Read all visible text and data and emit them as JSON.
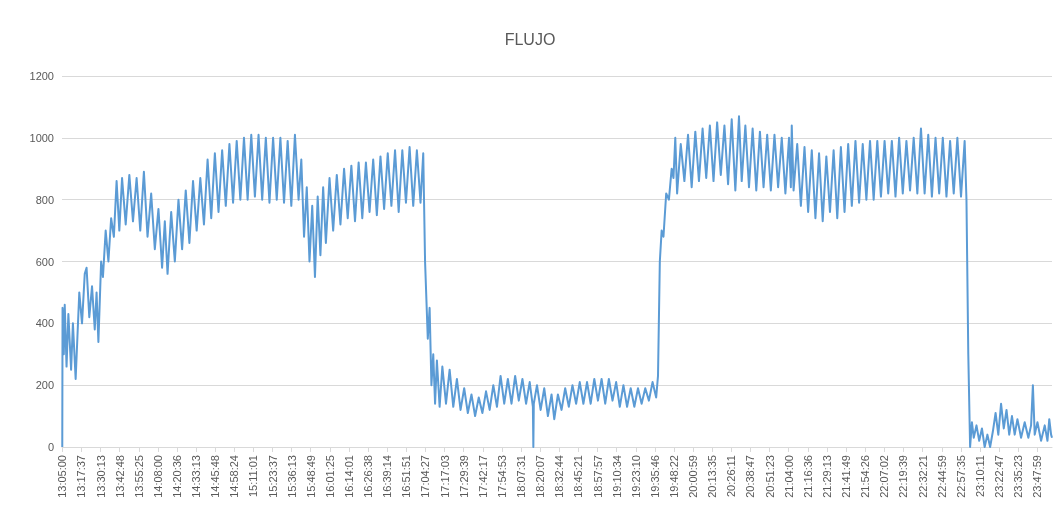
{
  "chart_data": {
    "type": "line",
    "title": "FLUJO",
    "x": [
      13.083,
      13.086,
      13.1,
      13.11,
      13.13,
      13.15,
      13.18,
      13.2,
      13.23,
      13.25,
      13.27,
      13.3,
      13.33,
      13.35,
      13.38,
      13.41,
      13.44,
      13.46,
      13.48,
      13.51,
      13.53,
      13.56,
      13.59,
      13.62,
      13.65,
      13.68,
      13.71,
      13.74,
      13.78,
      13.82,
      13.86,
      13.9,
      13.94,
      13.98,
      14.02,
      14.06,
      14.1,
      14.14,
      14.18,
      14.21,
      14.24,
      14.28,
      14.32,
      14.36,
      14.4,
      14.44,
      14.48,
      14.52,
      14.56,
      14.6,
      14.64,
      14.68,
      14.72,
      14.76,
      14.8,
      14.84,
      14.88,
      14.92,
      14.96,
      15.0,
      15.04,
      15.08,
      15.12,
      15.16,
      15.2,
      15.24,
      15.28,
      15.32,
      15.36,
      15.4,
      15.44,
      15.48,
      15.52,
      15.56,
      15.6,
      15.64,
      15.68,
      15.71,
      15.74,
      15.77,
      15.8,
      15.83,
      15.86,
      15.89,
      15.92,
      15.95,
      15.98,
      16.02,
      16.06,
      16.1,
      16.14,
      16.18,
      16.22,
      16.26,
      16.3,
      16.34,
      16.38,
      16.42,
      16.46,
      16.5,
      16.54,
      16.58,
      16.62,
      16.66,
      16.7,
      16.74,
      16.78,
      16.82,
      16.86,
      16.9,
      16.94,
      16.98,
      17.02,
      17.05,
      17.07,
      17.1,
      17.12,
      17.14,
      17.16,
      17.18,
      17.2,
      17.23,
      17.26,
      17.3,
      17.34,
      17.38,
      17.42,
      17.46,
      17.5,
      17.54,
      17.58,
      17.62,
      17.66,
      17.7,
      17.74,
      17.78,
      17.82,
      17.86,
      17.9,
      17.94,
      17.98,
      18.02,
      18.06,
      18.1,
      18.14,
      18.18,
      18.22,
      18.255,
      18.26,
      18.265,
      18.3,
      18.34,
      18.38,
      18.42,
      18.46,
      18.49,
      18.53,
      18.57,
      18.61,
      18.65,
      18.69,
      18.73,
      18.77,
      18.81,
      18.85,
      18.89,
      18.93,
      18.97,
      19.01,
      19.05,
      19.09,
      19.13,
      19.17,
      19.21,
      19.25,
      19.29,
      19.33,
      19.37,
      19.41,
      19.45,
      19.49,
      19.53,
      19.57,
      19.61,
      19.63,
      19.65,
      19.67,
      19.69,
      19.72,
      19.75,
      19.78,
      19.8,
      19.82,
      19.84,
      19.88,
      19.92,
      19.96,
      20.0,
      20.04,
      20.08,
      20.12,
      20.16,
      20.2,
      20.24,
      20.28,
      20.32,
      20.36,
      20.4,
      20.44,
      20.48,
      20.52,
      20.55,
      20.59,
      20.63,
      20.67,
      20.71,
      20.75,
      20.79,
      20.83,
      20.87,
      20.91,
      20.95,
      20.99,
      21.03,
      21.07,
      21.09,
      21.1,
      21.12,
      21.16,
      21.2,
      21.24,
      21.28,
      21.32,
      21.36,
      21.4,
      21.44,
      21.48,
      21.52,
      21.56,
      21.6,
      21.64,
      21.68,
      21.72,
      21.76,
      21.8,
      21.84,
      21.88,
      21.92,
      21.96,
      22.0,
      22.04,
      22.08,
      22.12,
      22.16,
      22.2,
      22.24,
      22.28,
      22.32,
      22.36,
      22.4,
      22.44,
      22.48,
      22.52,
      22.56,
      22.6,
      22.64,
      22.68,
      22.72,
      22.76,
      22.8,
      22.84,
      22.88,
      22.92,
      22.96,
      23.0,
      23.02,
      23.04,
      23.06,
      23.08,
      23.1,
      23.13,
      23.16,
      23.19,
      23.22,
      23.25,
      23.28,
      23.31,
      23.34,
      23.37,
      23.4,
      23.43,
      23.46,
      23.49,
      23.52,
      23.55,
      23.58,
      23.62,
      23.66,
      23.7,
      23.73,
      23.75,
      23.77,
      23.8,
      23.84,
      23.88,
      23.91,
      23.93,
      23.95,
      23.96
    ],
    "series": [
      {
        "color": "#5b9bd5",
        "values": [
          0,
          450,
          300,
          460,
          260,
          430,
          250,
          400,
          220,
          360,
          500,
          400,
          560,
          580,
          420,
          520,
          380,
          500,
          340,
          600,
          550,
          700,
          600,
          740,
          680,
          860,
          700,
          870,
          720,
          880,
          730,
          870,
          700,
          890,
          680,
          820,
          640,
          770,
          580,
          730,
          560,
          760,
          600,
          800,
          640,
          830,
          660,
          860,
          700,
          870,
          720,
          930,
          740,
          950,
          760,
          960,
          780,
          980,
          790,
          990,
          800,
          1000,
          800,
          1010,
          810,
          1010,
          800,
          1000,
          790,
          1000,
          800,
          1000,
          790,
          990,
          780,
          1010,
          800,
          930,
          680,
          840,
          600,
          780,
          550,
          810,
          620,
          840,
          660,
          870,
          700,
          880,
          720,
          900,
          740,
          910,
          730,
          920,
          740,
          920,
          760,
          930,
          750,
          940,
          770,
          950,
          780,
          960,
          760,
          960,
          790,
          970,
          780,
          960,
          790,
          950,
          600,
          350,
          450,
          200,
          300,
          140,
          280,
          130,
          260,
          140,
          250,
          130,
          220,
          120,
          190,
          110,
          170,
          100,
          160,
          110,
          180,
          120,
          200,
          130,
          230,
          140,
          220,
          140,
          230,
          150,
          220,
          140,
          210,
          130,
          0,
          140,
          200,
          120,
          190,
          100,
          170,
          90,
          170,
          120,
          190,
          130,
          200,
          140,
          210,
          140,
          210,
          140,
          220,
          150,
          220,
          140,
          220,
          150,
          210,
          130,
          200,
          130,
          190,
          130,
          190,
          140,
          190,
          150,
          210,
          160,
          230,
          600,
          700,
          680,
          820,
          800,
          900,
          870,
          1000,
          820,
          980,
          860,
          1010,
          840,
          1020,
          860,
          1030,
          870,
          1040,
          860,
          1050,
          880,
          1040,
          850,
          1060,
          830,
          1070,
          860,
          1040,
          840,
          1030,
          830,
          1020,
          840,
          1010,
          830,
          1010,
          840,
          1000,
          820,
          1000,
          840,
          1040,
          830,
          980,
          780,
          970,
          760,
          960,
          740,
          950,
          730,
          940,
          760,
          960,
          740,
          970,
          760,
          980,
          780,
          990,
          790,
          980,
          800,
          990,
          800,
          990,
          810,
          990,
          820,
          990,
          810,
          1000,
          820,
          990,
          830,
          1000,
          820,
          1030,
          820,
          1010,
          810,
          1000,
          820,
          1000,
          810,
          990,
          820,
          1000,
          810,
          990,
          800,
          300,
          0,
          80,
          30,
          70,
          20,
          60,
          0,
          40,
          0,
          50,
          110,
          40,
          140,
          60,
          120,
          40,
          100,
          40,
          90,
          30,
          80,
          30,
          70,
          200,
          40,
          80,
          20,
          70,
          20,
          90,
          40,
          30
        ]
      }
    ],
    "xlim": [
      13.08,
      23.96
    ],
    "xticks": [
      {
        "value": 13.0833,
        "label": "13:05:00"
      },
      {
        "value": 13.2936,
        "label": "13:17:37"
      },
      {
        "value": 13.5036,
        "label": "13:30:13"
      },
      {
        "value": 13.7133,
        "label": "13:42:48"
      },
      {
        "value": 13.9236,
        "label": "13:55:25"
      },
      {
        "value": 14.1333,
        "label": "14:08:00"
      },
      {
        "value": 14.3433,
        "label": "14:20:36"
      },
      {
        "value": 14.5536,
        "label": "14:33:13"
      },
      {
        "value": 14.7633,
        "label": "14:45:48"
      },
      {
        "value": 14.9733,
        "label": "14:58:24"
      },
      {
        "value": 15.1836,
        "label": "15:11:01"
      },
      {
        "value": 15.3936,
        "label": "15:23:37"
      },
      {
        "value": 15.6036,
        "label": "15:36:13"
      },
      {
        "value": 15.8136,
        "label": "15:48:49"
      },
      {
        "value": 16.0236,
        "label": "16:01:25"
      },
      {
        "value": 16.2336,
        "label": "16:14:01"
      },
      {
        "value": 16.4439,
        "label": "16:26:38"
      },
      {
        "value": 16.6539,
        "label": "16:39:14"
      },
      {
        "value": 16.8642,
        "label": "16:51:51"
      },
      {
        "value": 17.0742,
        "label": "17:04:27"
      },
      {
        "value": 17.2842,
        "label": "17:17:03"
      },
      {
        "value": 17.4942,
        "label": "17:29:39"
      },
      {
        "value": 17.7047,
        "label": "17:42:17"
      },
      {
        "value": 17.9147,
        "label": "17:54:53"
      },
      {
        "value": 18.1253,
        "label": "18:07:31"
      },
      {
        "value": 18.3353,
        "label": "18:20:07"
      },
      {
        "value": 18.5456,
        "label": "18:32:44"
      },
      {
        "value": 18.7558,
        "label": "18:45:21"
      },
      {
        "value": 18.9658,
        "label": "18:57:57"
      },
      {
        "value": 19.1761,
        "label": "19:10:34"
      },
      {
        "value": 19.3861,
        "label": "19:23:10"
      },
      {
        "value": 19.5961,
        "label": "19:35:46"
      },
      {
        "value": 19.8061,
        "label": "19:48:22"
      },
      {
        "value": 20.0164,
        "label": "20:00:59"
      },
      {
        "value": 20.2264,
        "label": "20:13:35"
      },
      {
        "value": 20.4364,
        "label": "20:26:11"
      },
      {
        "value": 20.6464,
        "label": "20:38:47"
      },
      {
        "value": 20.8564,
        "label": "20:51:23"
      },
      {
        "value": 21.0667,
        "label": "21:04:00"
      },
      {
        "value": 21.2767,
        "label": "21:16:36"
      },
      {
        "value": 21.4869,
        "label": "21:29:13"
      },
      {
        "value": 21.6969,
        "label": "21:41:49"
      },
      {
        "value": 21.9072,
        "label": "21:54:26"
      },
      {
        "value": 22.1172,
        "label": "22:07:02"
      },
      {
        "value": 22.3275,
        "label": "22:19:39"
      },
      {
        "value": 22.5392,
        "label": "22:32:21"
      },
      {
        "value": 22.7497,
        "label": "22:44:59"
      },
      {
        "value": 22.9597,
        "label": "22:57:35"
      },
      {
        "value": 23.1697,
        "label": "23:10:11"
      },
      {
        "value": 23.3797,
        "label": "23:22:47"
      },
      {
        "value": 23.5897,
        "label": "23:35:23"
      },
      {
        "value": 23.7997,
        "label": "23:47:59"
      }
    ],
    "ylim": [
      0,
      1200
    ],
    "yticks": [
      0,
      200,
      400,
      600,
      800,
      1000,
      1200
    ],
    "grid": "y",
    "marker": "none"
  }
}
